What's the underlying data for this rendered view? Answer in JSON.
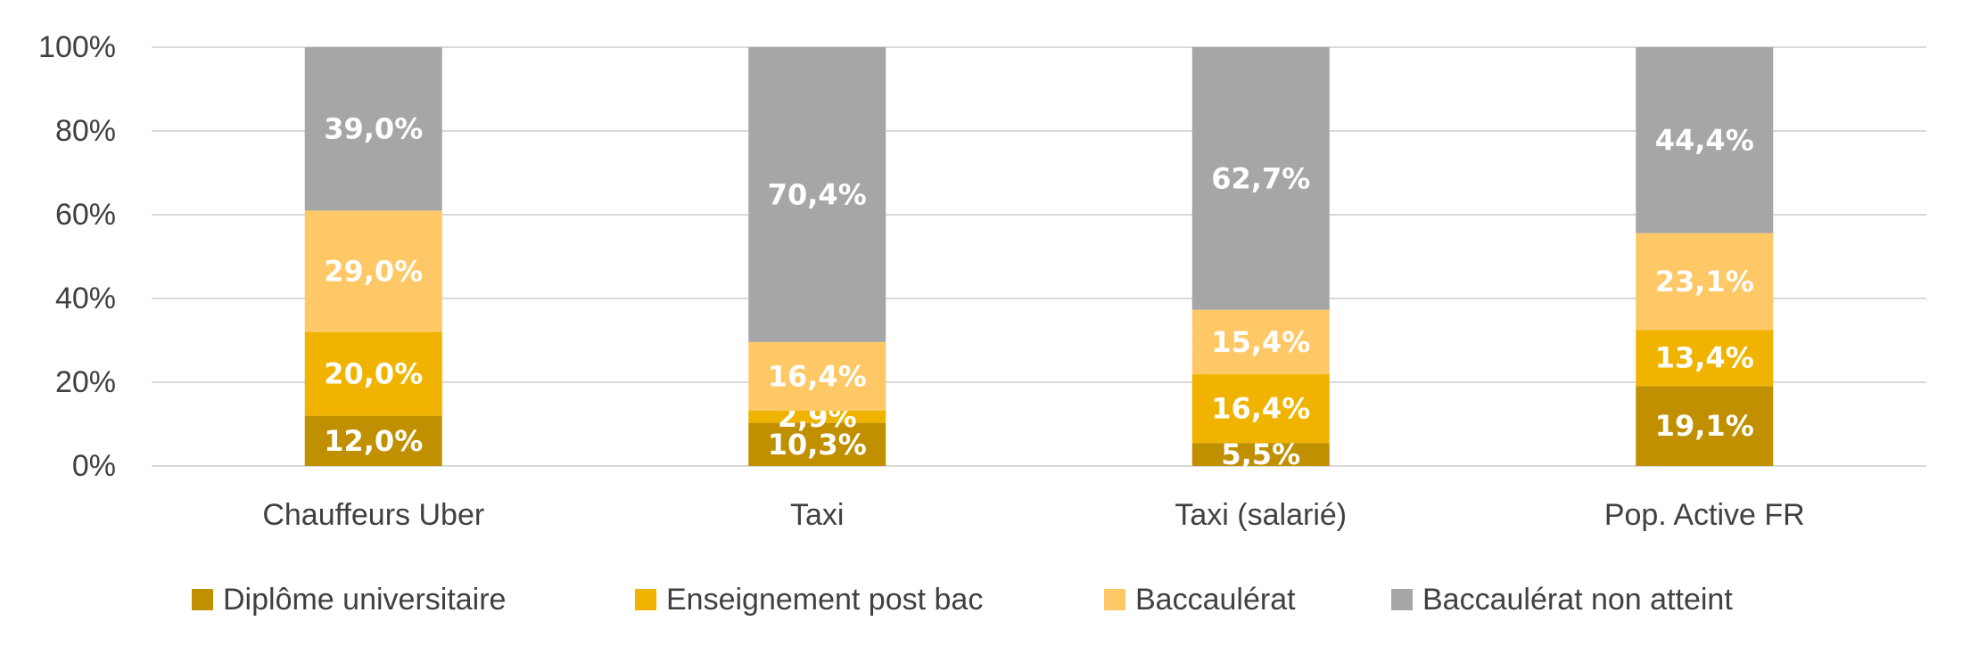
{
  "chart_data": {
    "type": "bar",
    "stacked": true,
    "categories": [
      "Chauffeurs Uber",
      "Taxi",
      "Taxi (salarié)",
      "Pop. Active FR"
    ],
    "series": [
      {
        "name": "Diplôme universitaire",
        "color": "#c09000",
        "values": [
          12.0,
          10.3,
          5.5,
          19.1
        ],
        "labels": [
          "12,0%",
          "10,3%",
          "5,5%",
          "19,1%"
        ]
      },
      {
        "name": "Enseignement post bac",
        "color": "#f0b400",
        "values": [
          20.0,
          2.9,
          16.4,
          13.4
        ],
        "labels": [
          "20,0%",
          "2,9%",
          "16,4%",
          "13,4%"
        ]
      },
      {
        "name": "Baccaulérat",
        "color": "#ffc866",
        "values": [
          29.0,
          16.4,
          15.4,
          23.1
        ],
        "labels": [
          "29,0%",
          "16,4%",
          "15,4%",
          "23,1%"
        ]
      },
      {
        "name": "Baccaulérat non atteint",
        "color": "#a6a6a6",
        "values": [
          39.0,
          70.4,
          62.7,
          44.4
        ],
        "labels": [
          "39,0%",
          "70,4%",
          "62,7%",
          "44,4%"
        ]
      }
    ],
    "y_ticks": [
      "0%",
      "20%",
      "40%",
      "60%",
      "80%",
      "100%"
    ],
    "ylim": [
      0,
      100
    ],
    "grid": true,
    "legend_position": "bottom",
    "title": "",
    "xlabel": "",
    "ylabel": ""
  }
}
